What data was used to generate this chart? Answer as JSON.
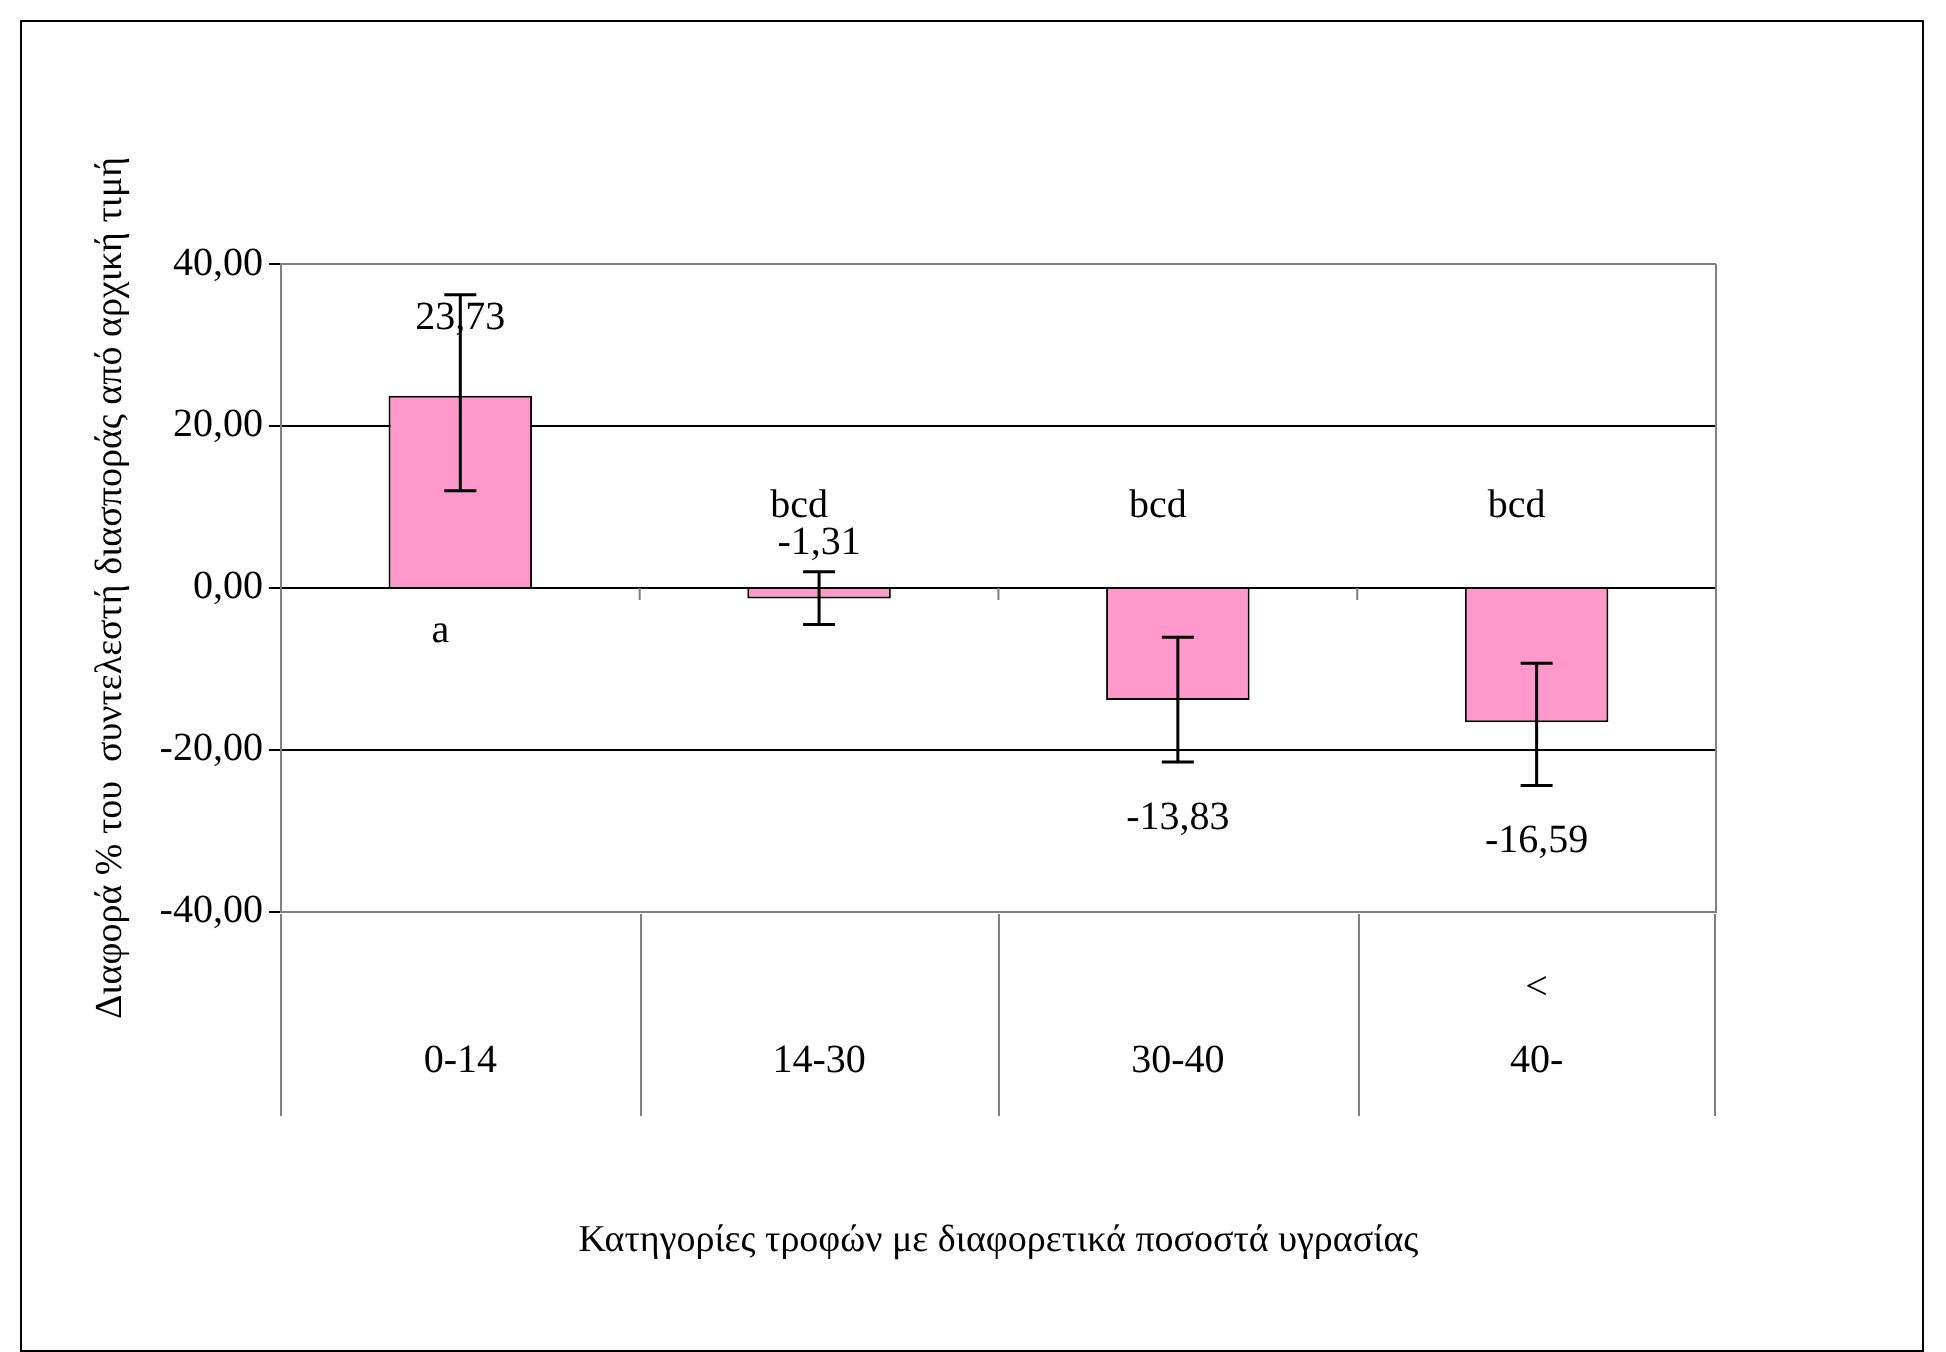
{
  "chart_data": {
    "type": "bar",
    "xlabel": "Κατηγορίες τροφών με διαφορετικά ποσοστά υγρασίας",
    "ylabel": "Διαφορά % του  συντελεστή διασποράς από αρχική τιμή",
    "categories": [
      "0-14",
      "14-30",
      "30-40",
      "40-"
    ],
    "values": [
      23.73,
      -1.31,
      -13.83,
      -16.59
    ],
    "value_labels": [
      "23,73",
      "-1,31",
      "-13,83",
      "-16,59"
    ],
    "errors": [
      [
        12.0,
        36.2
      ],
      [
        -4.5,
        2.0
      ],
      [
        -21.5,
        -6.1
      ],
      [
        -24.4,
        -9.3
      ]
    ],
    "color": "#ff99cc",
    "ylim": [
      -40,
      40
    ],
    "yticks": [
      {
        "value": -40,
        "label": "-40,00"
      },
      {
        "value": -20,
        "label": "-20,00"
      },
      {
        "value": 0,
        "label": "0,00"
      },
      {
        "value": 20,
        "label": "20,00"
      },
      {
        "value": 40,
        "label": "40,00"
      }
    ],
    "grid": "y",
    "annotations": [
      "a",
      "bcd",
      "bcd",
      "bcd",
      "<"
    ]
  }
}
